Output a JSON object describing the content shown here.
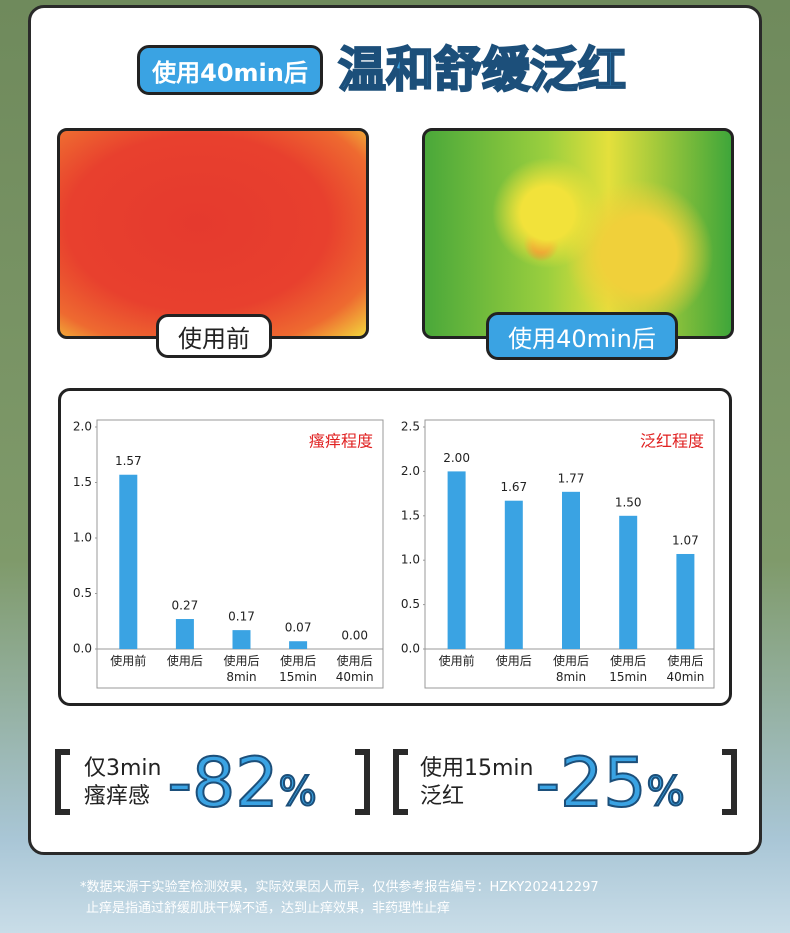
{
  "header": {
    "badge": "使用40min后",
    "title": "温和舒缓泛红"
  },
  "images": [
    {
      "label": "使用前"
    },
    {
      "label": "使用40min后"
    }
  ],
  "chart_data": [
    {
      "type": "bar",
      "title": "瘙痒程度",
      "categories": [
        "使用前",
        "使用后",
        "使用后\n8min",
        "使用后\n15min",
        "使用后\n40min"
      ],
      "values": [
        1.57,
        0.27,
        0.17,
        0.07,
        0
      ],
      "value_labels": [
        "1.57",
        "0.27",
        "0.17",
        "0.07",
        "0.00"
      ],
      "color": "#3aa3e3",
      "ylim": [
        0,
        2
      ],
      "yticks": [
        {
          "value": 0,
          "label": "0.0"
        },
        0.5,
        {
          "value": 1,
          "label": "1.0"
        },
        1.5,
        {
          "value": 2,
          "label": "2.0"
        }
      ]
    },
    {
      "type": "bar",
      "title": "泛红程度",
      "categories": [
        "使用前",
        "使用后",
        "使用后\n8min",
        "使用后\n15min",
        "使用后\n40min"
      ],
      "values": [
        2,
        1.67,
        1.77,
        1.5,
        1.07
      ],
      "value_labels": [
        "2.00",
        "1.67",
        "1.77",
        "1.50",
        "1.07"
      ],
      "color": "#3aa3e3",
      "ylim": [
        0,
        2.5
      ],
      "yticks": [
        {
          "value": 0,
          "label": "0.0"
        },
        0.5,
        {
          "value": 1,
          "label": "1.0"
        },
        1.5,
        {
          "value": 2,
          "label": "2.0"
        },
        2.5
      ]
    }
  ],
  "stats": [
    {
      "line1": "仅3min",
      "line2": "瘙痒感",
      "number": "-82",
      "unit": "%"
    },
    {
      "line1": "使用15min",
      "line2": "泛红",
      "number": "-25",
      "unit": "%"
    }
  ],
  "footnote": [
    "*数据来源于实验室检测效果，实际效果因人而异，仅供参考报告编号：HZKY202412297",
    "止痒是指通过舒缓肌肤干燥不适，达到止痒效果，非药理性止痒"
  ]
}
